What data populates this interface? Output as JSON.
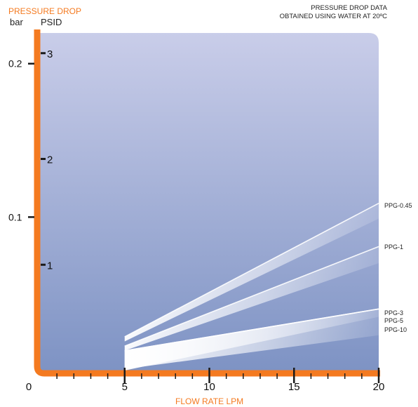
{
  "colors": {
    "axis": "#f47a20",
    "plot_top": "#c9cde9",
    "plot_bottom": "#7e93c4",
    "band": "#ffffff",
    "tick": "#1a1a1a"
  },
  "chart_data": {
    "type": "area",
    "title": "PRESSURE DROP",
    "units": {
      "primary": "bar",
      "secondary": "PSID"
    },
    "note": [
      "PRESSURE DROP DATA",
      "OBTAINED USING WATER AT 20ºC"
    ],
    "xlabel": "FLOW RATE LPM",
    "xlim": [
      0,
      20
    ],
    "xticks": [
      {
        "value": 0,
        "label": "0"
      },
      {
        "value": 5,
        "label": "5"
      },
      {
        "value": 10,
        "label": "10"
      },
      {
        "value": 15,
        "label": "15"
      },
      {
        "value": 20,
        "label": "20"
      }
    ],
    "xminor_step": 1,
    "ylim": [
      0,
      0.22
    ],
    "yticks_bar": [
      {
        "value": 0.1,
        "label": "0.1"
      },
      {
        "value": 0.2,
        "label": "0.2"
      }
    ],
    "yticks_psid": [
      {
        "value": 1,
        "label": "1"
      },
      {
        "value": 2,
        "label": "2"
      },
      {
        "value": 3,
        "label": "3"
      }
    ],
    "psi_to_bar": 0.0689476,
    "series": [
      {
        "name": "PPG-0.45",
        "x": [
          5,
          20
        ],
        "y_upper": [
          0.022,
          0.109
        ],
        "y_lower": [
          0.019,
          0.099
        ]
      },
      {
        "name": "PPG-1",
        "x": [
          5,
          20
        ],
        "y_upper": [
          0.0159,
          0.0808
        ],
        "y_lower": [
          0.013,
          0.07
        ]
      },
      {
        "name": "PPG-3",
        "x": [
          5,
          20
        ],
        "y_upper": [
          0.0129,
          0.0401
        ],
        "y_lower": [
          0.0,
          0.035
        ]
      },
      {
        "name": "PPG-5",
        "x": [],
        "y_upper": [],
        "y_lower": []
      },
      {
        "name": "PPG-10",
        "x": [
          5,
          20
        ],
        "y_upper": [
          0.0129,
          0.0401
        ],
        "y_lower": [
          0.001,
          0.023
        ]
      }
    ],
    "series_labels": [
      {
        "name": "PPG-0.45",
        "y": 0.108
      },
      {
        "name": "PPG-1",
        "y": 0.081
      },
      {
        "name": "PPG-3",
        "y": 0.038
      },
      {
        "name": "PPG-5",
        "y": 0.033
      },
      {
        "name": "PPG-10",
        "y": 0.027
      }
    ]
  }
}
